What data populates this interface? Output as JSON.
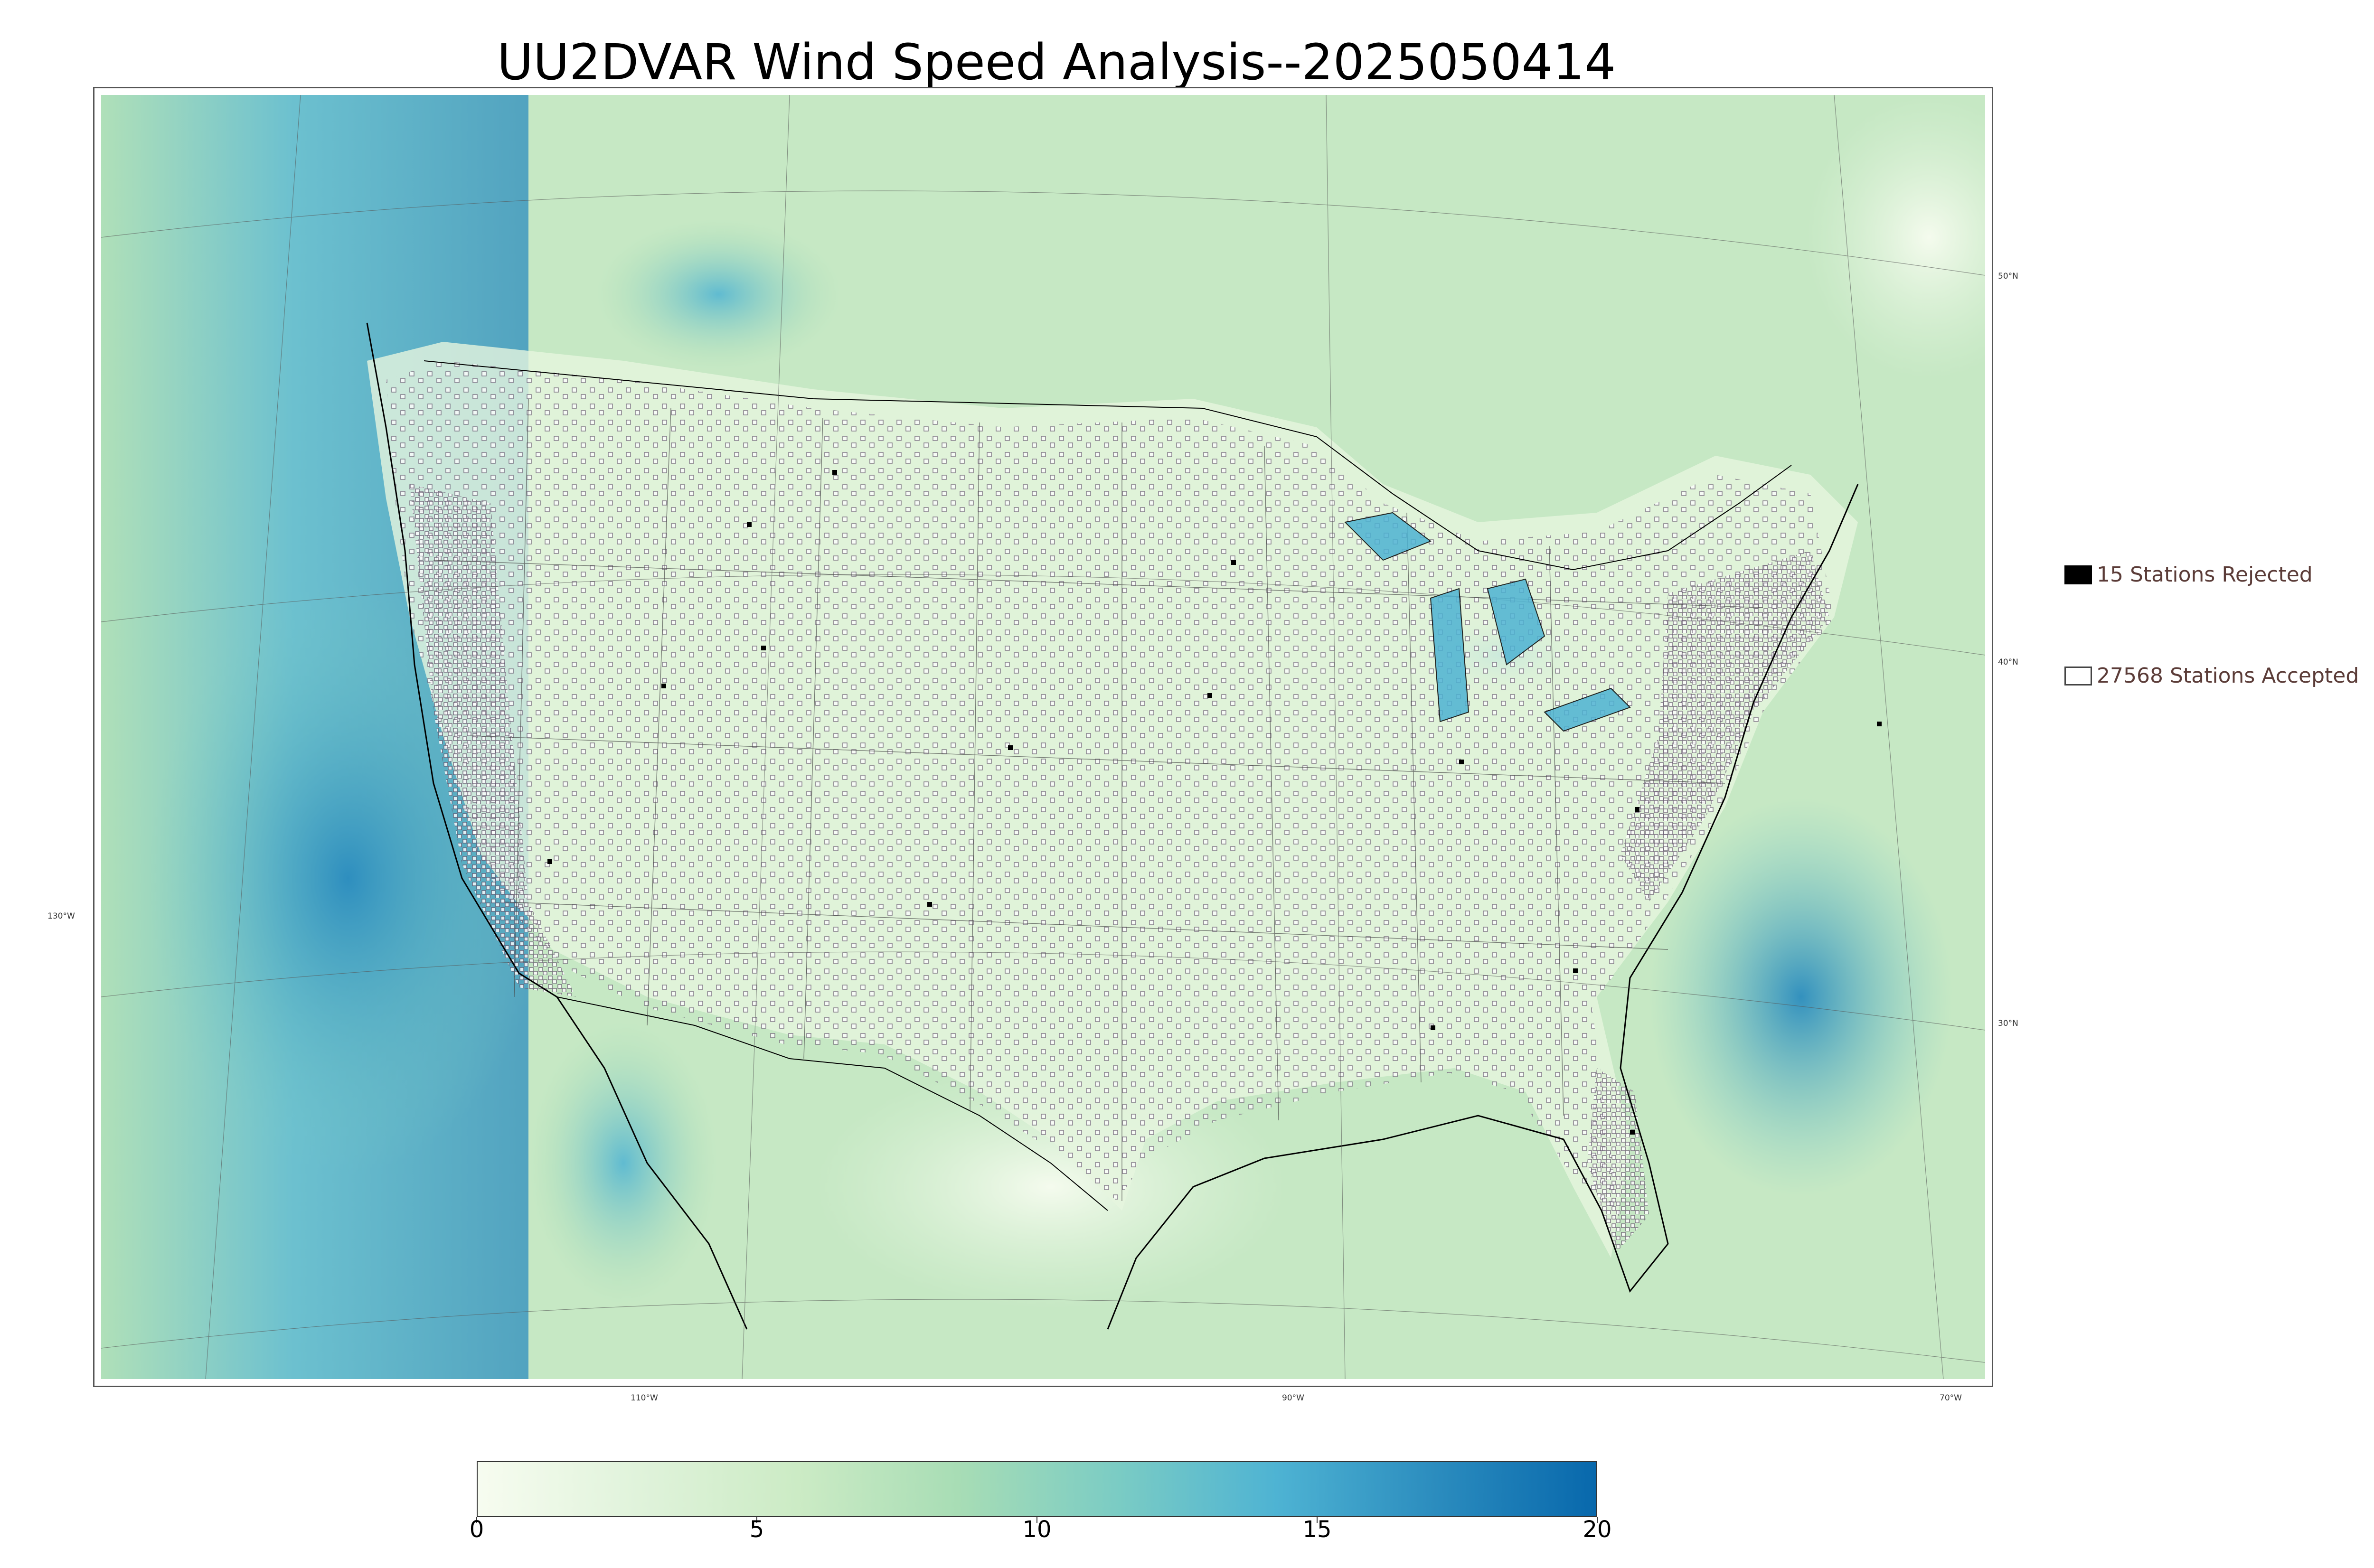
{
  "title": "UU2DVAR Wind Speed Analysis--2025050414",
  "map": {
    "projection": "lambert-conformal",
    "region": "CONUS",
    "colormap": "GnBu",
    "latitude_labels": [
      "50°N",
      "40°N",
      "30°N"
    ],
    "longitude_labels": [
      "130°W",
      "110°W",
      "90°W",
      "70°W"
    ],
    "border_color": "#000000"
  },
  "legend": {
    "rejected": {
      "label": "15 Stations Rejected",
      "count": 15,
      "color": "#000000"
    },
    "accepted": {
      "label": "27568 Stations Accepted",
      "count": 27568,
      "color": "#ffffff"
    }
  },
  "colorbar": {
    "min": 0,
    "max": 20,
    "ticks": [
      "0",
      "5",
      "10",
      "15",
      "20"
    ],
    "colors": [
      "#f7fcf0",
      "#e0f3db",
      "#ccebc5",
      "#a8ddb5",
      "#7bccc4",
      "#4eb3d3",
      "#2b8cbe",
      "#0868ac"
    ]
  }
}
